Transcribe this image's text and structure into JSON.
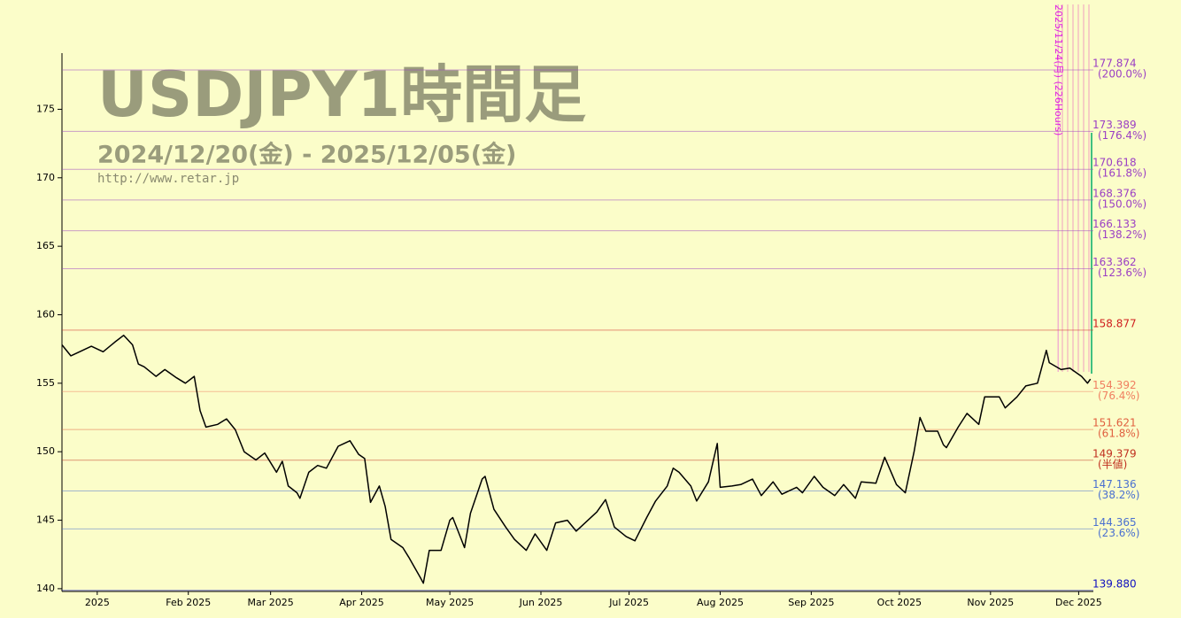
{
  "chart_data": {
    "type": "line",
    "title": "USDJPY1時間足",
    "subtitle": "2024/12/20(金) - 2025/12/05(金)",
    "url": "http://www.retar.jp",
    "color": "#000000",
    "xlim": [
      "2024-12-20",
      "2025-12-06"
    ],
    "ylim": [
      139.8,
      179.1
    ],
    "yticks": [
      140,
      145,
      150,
      155,
      160,
      165,
      170,
      175
    ],
    "xticks": [
      {
        "value": "2025-01-01",
        "label": "2025"
      },
      {
        "value": "2025-02-01",
        "label": "Feb 2025"
      },
      {
        "value": "2025-03-01",
        "label": "Mar 2025"
      },
      {
        "value": "2025-04-01",
        "label": "Apr 2025"
      },
      {
        "value": "2025-05-01",
        "label": "May 2025"
      },
      {
        "value": "2025-06-01",
        "label": "Jun 2025"
      },
      {
        "value": "2025-07-01",
        "label": "Jul 2025"
      },
      {
        "value": "2025-08-01",
        "label": "Aug 2025"
      },
      {
        "value": "2025-09-01",
        "label": "Sep 2025"
      },
      {
        "value": "2025-10-01",
        "label": "Oct 2025"
      },
      {
        "value": "2025-11-01",
        "label": "Nov 2025"
      },
      {
        "value": "2025-12-01",
        "label": "Dec 2025"
      }
    ],
    "x": [
      "2024-12-20",
      "2024-12-23",
      "2024-12-26",
      "2024-12-30",
      "2025-01-03",
      "2025-01-07",
      "2025-01-10",
      "2025-01-13",
      "2025-01-15",
      "2025-01-17",
      "2025-01-21",
      "2025-01-24",
      "2025-01-28",
      "2025-01-31",
      "2025-02-03",
      "2025-02-05",
      "2025-02-07",
      "2025-02-11",
      "2025-02-14",
      "2025-02-17",
      "2025-02-20",
      "2025-02-24",
      "2025-02-27",
      "2025-03-03",
      "2025-03-05",
      "2025-03-07",
      "2025-03-10",
      "2025-03-11",
      "2025-03-14",
      "2025-03-17",
      "2025-03-20",
      "2025-03-24",
      "2025-03-26",
      "2025-03-28",
      "2025-03-31",
      "2025-04-02",
      "2025-04-04",
      "2025-04-07",
      "2025-04-09",
      "2025-04-11",
      "2025-04-15",
      "2025-04-17",
      "2025-04-21",
      "2025-04-22",
      "2025-04-24",
      "2025-04-28",
      "2025-05-01",
      "2025-05-02",
      "2025-05-06",
      "2025-05-08",
      "2025-05-12",
      "2025-05-13",
      "2025-05-16",
      "2025-05-20",
      "2025-05-23",
      "2025-05-27",
      "2025-05-30",
      "2025-06-03",
      "2025-06-06",
      "2025-06-10",
      "2025-06-13",
      "2025-06-17",
      "2025-06-20",
      "2025-06-23",
      "2025-06-26",
      "2025-06-30",
      "2025-07-03",
      "2025-07-07",
      "2025-07-10",
      "2025-07-14",
      "2025-07-16",
      "2025-07-18",
      "2025-07-22",
      "2025-07-24",
      "2025-07-28",
      "2025-07-31",
      "2025-08-01",
      "2025-08-05",
      "2025-08-08",
      "2025-08-12",
      "2025-08-15",
      "2025-08-19",
      "2025-08-22",
      "2025-08-27",
      "2025-08-29",
      "2025-09-02",
      "2025-09-05",
      "2025-09-09",
      "2025-09-12",
      "2025-09-16",
      "2025-09-18",
      "2025-09-23",
      "2025-09-26",
      "2025-09-30",
      "2025-10-02",
      "2025-10-03",
      "2025-10-06",
      "2025-10-08",
      "2025-10-10",
      "2025-10-14",
      "2025-10-16",
      "2025-10-17",
      "2025-10-21",
      "2025-10-24",
      "2025-10-28",
      "2025-10-30",
      "2025-11-04",
      "2025-11-06",
      "2025-11-10",
      "2025-11-13",
      "2025-11-17",
      "2025-11-20",
      "2025-11-21",
      "2025-11-25",
      "2025-11-28",
      "2025-12-02",
      "2025-12-04",
      "2025-12-05"
    ],
    "values": [
      157.8,
      157.0,
      157.3,
      157.7,
      157.3,
      158.0,
      158.5,
      157.8,
      156.4,
      156.2,
      155.5,
      156.0,
      155.4,
      155.0,
      155.5,
      153.0,
      151.8,
      152.0,
      152.4,
      151.6,
      150.0,
      149.4,
      149.9,
      148.5,
      149.3,
      147.5,
      147.0,
      146.6,
      148.5,
      149.0,
      148.8,
      150.4,
      150.6,
      150.8,
      149.8,
      149.5,
      146.3,
      147.5,
      146.0,
      143.6,
      143.0,
      142.3,
      140.8,
      140.4,
      142.8,
      142.8,
      145.0,
      145.2,
      143.0,
      145.5,
      148.0,
      148.2,
      145.8,
      144.5,
      143.6,
      142.8,
      144.0,
      142.8,
      144.8,
      145.0,
      144.2,
      145.0,
      145.6,
      146.5,
      144.5,
      143.8,
      143.5,
      145.2,
      146.4,
      147.5,
      148.8,
      148.5,
      147.5,
      146.4,
      147.8,
      150.6,
      147.4,
      147.5,
      147.6,
      148.0,
      146.8,
      147.8,
      146.9,
      147.4,
      147.0,
      148.2,
      147.4,
      146.8,
      147.6,
      146.6,
      147.8,
      147.7,
      149.6,
      147.6,
      147.2,
      147.0,
      150.0,
      152.5,
      151.5,
      151.5,
      150.5,
      150.3,
      151.8,
      152.8,
      152.0,
      154.0,
      154.0,
      153.2,
      154.0,
      154.8,
      155.0,
      157.4,
      156.5,
      156.0,
      156.1,
      155.5,
      155.0,
      155.3
    ],
    "levels": [
      {
        "value": 177.874,
        "note": "(200.0%)",
        "color": "#9b3fc4"
      },
      {
        "value": 173.389,
        "note": "(176.4%)",
        "color": "#9b3fc4"
      },
      {
        "value": 170.618,
        "note": "(161.8%)",
        "color": "#9b3fc4"
      },
      {
        "value": 168.376,
        "note": "(150.0%)",
        "color": "#9b3fc4"
      },
      {
        "value": 166.133,
        "note": "(138.2%)",
        "color": "#9b3fc4"
      },
      {
        "value": 163.362,
        "note": "(123.6%)",
        "color": "#9b3fc4"
      },
      {
        "value": 158.877,
        "color": "#d02020"
      },
      {
        "value": 154.392,
        "note": "(76.4%)",
        "color": "#f07f60"
      },
      {
        "value": 151.621,
        "note": "(61.8%)",
        "color": "#e06040"
      },
      {
        "value": 149.379,
        "note": "(半値)",
        "color": "#c03020"
      },
      {
        "value": 147.136,
        "note": "(38.2%)",
        "color": "#4a70d0"
      },
      {
        "value": 144.365,
        "note": "(23.6%)",
        "color": "#4a70d0"
      },
      {
        "value": 139.88,
        "label": "139.880",
        "color": "#1010c0"
      }
    ],
    "annotation": {
      "date": "2025-11-24",
      "label": "2025/11/24(月) (226Hours)",
      "color": "#e020e0"
    }
  }
}
